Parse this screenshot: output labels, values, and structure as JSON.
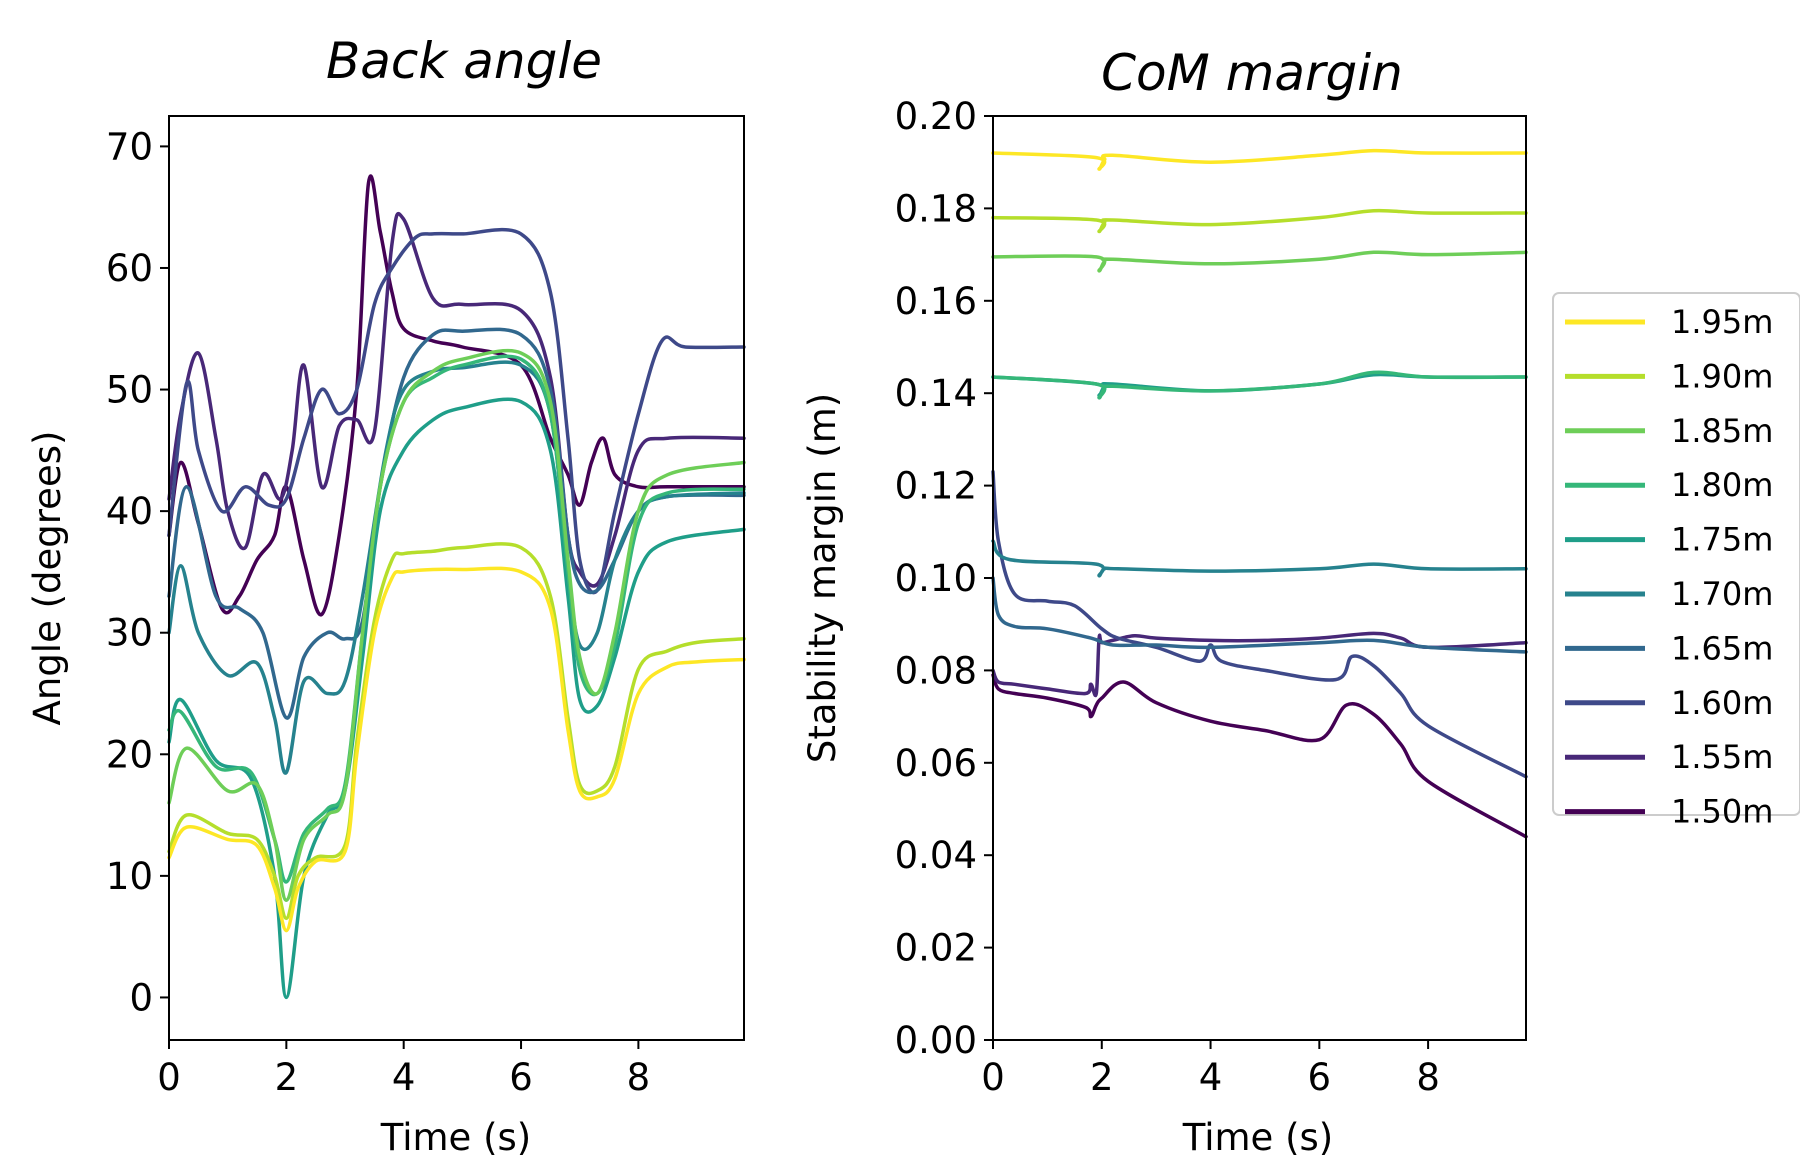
{
  "colors": {
    "1.95m": "#fde725",
    "1.90m": "#b5de2b",
    "1.85m": "#6ece58",
    "1.80m": "#35b779",
    "1.75m": "#1f9e89",
    "1.70m": "#26828e",
    "1.65m": "#31688e",
    "1.60m": "#3e4989",
    "1.55m": "#482878",
    "1.50m": "#440154"
  },
  "legend": {
    "placement": "right",
    "entries": [
      "1.95m",
      "1.90m",
      "1.85m",
      "1.80m",
      "1.75m",
      "1.70m",
      "1.65m",
      "1.60m",
      "1.55m",
      "1.50m"
    ]
  },
  "chart_data": [
    {
      "type": "line",
      "title": "Back angle",
      "xlabel": "Time (s)",
      "ylabel": "Angle (degrees)",
      "xlim": [
        0,
        9.8
      ],
      "ylim": [
        -3.5,
        72.5
      ],
      "xticks": [
        "0",
        "2",
        "4",
        "6",
        "8"
      ],
      "xtick_values": [
        0,
        2,
        4,
        6,
        8
      ],
      "yticks": [
        "0",
        "10",
        "20",
        "30",
        "40",
        "50",
        "60",
        "70"
      ],
      "ytick_values": [
        0,
        10,
        20,
        30,
        40,
        50,
        60,
        70
      ],
      "grid": false,
      "series": [
        {
          "name": "1.95m",
          "x": [
            0,
            0.3,
            1.0,
            1.5,
            1.8,
            2.0,
            2.2,
            2.5,
            3.0,
            3.2,
            3.5,
            3.8,
            4.0,
            4.5,
            5.0,
            6.0,
            6.5,
            6.8,
            7.0,
            7.3,
            7.6,
            8.0,
            8.5,
            9.0,
            9.8
          ],
          "values": [
            11.5,
            14.0,
            13.0,
            12.5,
            9.0,
            5.5,
            9.0,
            11.2,
            12.0,
            20.0,
            30.0,
            34.5,
            35.0,
            35.2,
            35.2,
            35.0,
            32.0,
            22.0,
            17.0,
            16.5,
            18.0,
            25.0,
            27.2,
            27.6,
            27.8
          ]
        },
        {
          "name": "1.90m",
          "x": [
            0,
            0.3,
            1.0,
            1.5,
            1.8,
            2.0,
            2.2,
            2.5,
            3.0,
            3.2,
            3.5,
            3.8,
            4.0,
            4.5,
            5.0,
            6.0,
            6.5,
            6.8,
            7.0,
            7.3,
            7.6,
            8.0,
            8.5,
            9.0,
            9.8
          ],
          "values": [
            12.0,
            15.0,
            13.5,
            13.0,
            10.0,
            6.5,
            10.0,
            11.5,
            12.5,
            21.0,
            31.0,
            36.0,
            36.5,
            36.7,
            37.0,
            37.0,
            33.0,
            23.0,
            17.5,
            17.0,
            19.0,
            27.0,
            28.5,
            29.2,
            29.5
          ]
        },
        {
          "name": "1.85m",
          "x": [
            0,
            0.3,
            1.0,
            1.5,
            1.8,
            2.0,
            2.3,
            2.7,
            3.0,
            3.3,
            3.6,
            4.0,
            4.5,
            5.0,
            6.0,
            6.5,
            6.8,
            7.0,
            7.3,
            7.6,
            8.0,
            8.5,
            9.8
          ],
          "values": [
            16.0,
            20.5,
            17.0,
            17.5,
            13.0,
            8.0,
            13.0,
            15.0,
            17.0,
            30.0,
            42.0,
            49.0,
            51.5,
            52.5,
            53.0,
            49.0,
            36.0,
            28.0,
            25.0,
            30.0,
            40.0,
            43.0,
            44.0
          ]
        },
        {
          "name": "1.80m",
          "x": [
            0,
            0.2,
            0.8,
            1.4,
            1.8,
            2.0,
            2.3,
            2.7,
            3.0,
            3.3,
            3.6,
            4.0,
            4.5,
            5.0,
            6.0,
            6.5,
            6.8,
            7.0,
            7.3,
            7.6,
            8.0,
            8.5,
            9.8
          ],
          "values": [
            22.0,
            23.5,
            19.0,
            18.5,
            13.0,
            9.5,
            13.5,
            15.5,
            17.5,
            30.0,
            42.0,
            49.0,
            51.0,
            52.0,
            52.5,
            48.0,
            35.0,
            27.0,
            25.0,
            29.0,
            39.0,
            41.5,
            41.8
          ]
        },
        {
          "name": "1.75m",
          "x": [
            0,
            0.2,
            0.8,
            1.4,
            1.8,
            2.0,
            2.3,
            2.7,
            3.0,
            3.3,
            3.6,
            4.0,
            4.5,
            5.0,
            6.0,
            6.5,
            6.8,
            7.0,
            7.3,
            7.6,
            8.0,
            8.5,
            9.8
          ],
          "values": [
            21.0,
            24.5,
            19.5,
            18.0,
            10.0,
            0.0,
            10.0,
            15.0,
            17.0,
            28.0,
            40.0,
            45.0,
            47.5,
            48.5,
            49.0,
            45.0,
            33.0,
            24.5,
            24.0,
            28.0,
            35.0,
            37.5,
            38.5
          ]
        },
        {
          "name": "1.70m",
          "x": [
            0,
            0.2,
            0.5,
            1.0,
            1.5,
            1.8,
            2.0,
            2.3,
            2.7,
            3.0,
            3.3,
            3.7,
            4.0,
            4.5,
            5.0,
            6.0,
            6.5,
            6.8,
            7.0,
            7.3,
            7.6,
            8.0,
            8.5,
            9.8
          ],
          "values": [
            30.0,
            35.5,
            30.0,
            26.5,
            27.5,
            23.0,
            18.5,
            26.0,
            25.0,
            26.0,
            33.0,
            45.0,
            50.0,
            51.5,
            51.8,
            52.0,
            48.0,
            35.0,
            29.0,
            30.0,
            36.0,
            40.0,
            41.2,
            41.5
          ]
        },
        {
          "name": "1.65m",
          "x": [
            0,
            0.3,
            0.8,
            1.2,
            1.6,
            2.0,
            2.3,
            2.7,
            3.0,
            3.3,
            3.6,
            4.0,
            4.5,
            5.0,
            6.0,
            6.5,
            6.8,
            7.0,
            7.3,
            7.6,
            8.0,
            8.5,
            9.8
          ],
          "values": [
            33.0,
            42.0,
            33.0,
            32.0,
            30.0,
            23.0,
            28.0,
            30.0,
            29.5,
            31.0,
            42.0,
            51.0,
            54.5,
            54.8,
            54.5,
            50.0,
            38.0,
            34.0,
            33.5,
            36.0,
            40.0,
            41.2,
            41.3
          ]
        },
        {
          "name": "1.60m",
          "x": [
            0,
            0.3,
            0.5,
            0.9,
            1.3,
            1.7,
            2.0,
            2.3,
            2.6,
            2.9,
            3.2,
            3.5,
            3.8,
            4.2,
            4.5,
            5.0,
            6.0,
            6.5,
            6.8,
            7.0,
            7.3,
            7.6,
            8.0,
            8.4,
            8.8,
            9.8
          ],
          "values": [
            38.0,
            50.5,
            45.0,
            40.0,
            42.0,
            40.5,
            41.0,
            46.0,
            50.0,
            48.0,
            50.0,
            57.0,
            60.0,
            62.5,
            62.8,
            62.8,
            62.8,
            58.0,
            46.0,
            36.0,
            33.5,
            40.0,
            48.0,
            54.0,
            53.5,
            53.5
          ]
        },
        {
          "name": "1.55m",
          "x": [
            0,
            0.2,
            0.5,
            0.8,
            1.0,
            1.3,
            1.6,
            1.9,
            2.1,
            2.3,
            2.6,
            2.9,
            3.2,
            3.5,
            3.8,
            4.0,
            4.5,
            5.0,
            6.0,
            6.5,
            6.8,
            7.0,
            7.3,
            7.6,
            8.0,
            8.5,
            9.8
          ],
          "values": [
            41.0,
            48.0,
            53.0,
            46.0,
            40.0,
            37.0,
            43.0,
            41.0,
            45.0,
            52.0,
            42.0,
            47.0,
            47.5,
            46.5,
            62.0,
            64.0,
            57.5,
            57.0,
            56.5,
            51.0,
            38.0,
            35.0,
            34.0,
            38.0,
            45.0,
            46.0,
            46.0
          ]
        },
        {
          "name": "1.50m",
          "x": [
            0,
            0.2,
            0.5,
            0.9,
            1.2,
            1.5,
            1.8,
            2.0,
            2.3,
            2.6,
            2.9,
            3.2,
            3.4,
            3.6,
            3.8,
            4.0,
            4.5,
            5.0,
            6.0,
            6.5,
            6.8,
            7.0,
            7.2,
            7.4,
            7.6,
            8.0,
            8.5,
            9.8
          ],
          "values": [
            38.0,
            44.0,
            39.0,
            32.0,
            33.0,
            36.0,
            38.0,
            42.0,
            36.0,
            31.5,
            38.0,
            50.0,
            67.0,
            63.0,
            58.0,
            55.0,
            54.0,
            53.5,
            52.0,
            46.0,
            43.0,
            40.5,
            44.0,
            46.0,
            43.0,
            42.0,
            42.0,
            42.0
          ]
        }
      ]
    },
    {
      "type": "line",
      "title": "CoM margin",
      "xlabel": "Time (s)",
      "ylabel": "Stability margin (m)",
      "xlim": [
        0,
        9.8
      ],
      "ylim": [
        0,
        0.2
      ],
      "xticks": [
        "0",
        "2",
        "4",
        "6",
        "8"
      ],
      "xtick_values": [
        0,
        2,
        4,
        6,
        8
      ],
      "yticks": [
        "0.00",
        "0.02",
        "0.04",
        "0.06",
        "0.08",
        "0.10",
        "0.12",
        "0.14",
        "0.16",
        "0.18",
        "0.20"
      ],
      "ytick_values": [
        0,
        0.02,
        0.04,
        0.06,
        0.08,
        0.1,
        0.12,
        0.14,
        0.16,
        0.18,
        0.2
      ],
      "grid": false,
      "series": [
        {
          "name": "1.95m",
          "x": [
            0,
            1.9,
            1.95,
            2.05,
            2.2,
            4.0,
            6.0,
            7.0,
            8.0,
            9.8
          ],
          "values": [
            0.192,
            0.191,
            0.1885,
            0.1905,
            0.1915,
            0.19,
            0.1915,
            0.1925,
            0.192,
            0.192
          ]
        },
        {
          "name": "1.90m",
          "x": [
            0,
            1.9,
            1.95,
            2.05,
            2.2,
            4.0,
            6.0,
            7.0,
            8.0,
            9.8
          ],
          "values": [
            0.178,
            0.1775,
            0.175,
            0.177,
            0.1775,
            0.1765,
            0.178,
            0.1795,
            0.179,
            0.179
          ]
        },
        {
          "name": "1.85m",
          "x": [
            0,
            1.9,
            1.95,
            2.05,
            2.2,
            4.0,
            6.0,
            7.0,
            8.0,
            9.8
          ],
          "values": [
            0.1695,
            0.1695,
            0.1665,
            0.1685,
            0.169,
            0.168,
            0.169,
            0.1705,
            0.17,
            0.1705
          ]
        },
        {
          "name": "1.80m",
          "x": [
            0,
            1.9,
            1.95,
            2.05,
            2.2,
            4.0,
            6.0,
            7.0,
            8.0,
            9.8
          ],
          "values": [
            0.1435,
            0.142,
            0.139,
            0.141,
            0.1415,
            0.1405,
            0.142,
            0.1445,
            0.1435,
            0.1435
          ]
        },
        {
          "name": "1.75m",
          "x": [
            0,
            1.9,
            1.95,
            2.05,
            2.2,
            4.0,
            6.0,
            7.0,
            8.0,
            9.8
          ],
          "values": [
            0.1435,
            0.142,
            0.1395,
            0.1415,
            0.142,
            0.1405,
            0.142,
            0.144,
            0.1435,
            0.1435
          ]
        },
        {
          "name": "1.70m",
          "x": [
            0,
            0.3,
            1.9,
            1.95,
            2.05,
            2.3,
            4.0,
            6.0,
            7.0,
            8.0,
            9.8
          ],
          "values": [
            0.108,
            0.104,
            0.103,
            0.1005,
            0.102,
            0.102,
            0.1015,
            0.102,
            0.103,
            0.102,
            0.102
          ]
        },
        {
          "name": "1.65m",
          "x": [
            0,
            0.1,
            0.4,
            1.0,
            1.8,
            2.2,
            3.0,
            4.0,
            6.0,
            7.0,
            8.0,
            9.8
          ],
          "values": [
            0.1,
            0.092,
            0.0895,
            0.089,
            0.087,
            0.0855,
            0.0855,
            0.085,
            0.086,
            0.0865,
            0.085,
            0.084
          ]
        },
        {
          "name": "1.60m",
          "x": [
            0,
            0.1,
            0.4,
            1.0,
            1.5,
            2.0,
            2.3,
            3.0,
            3.8,
            4.0,
            4.2,
            5.0,
            6.3,
            6.6,
            7.0,
            7.5,
            8.0,
            9.8
          ],
          "values": [
            0.123,
            0.108,
            0.0965,
            0.095,
            0.094,
            0.089,
            0.087,
            0.085,
            0.082,
            0.0855,
            0.082,
            0.08,
            0.078,
            0.083,
            0.081,
            0.075,
            0.068,
            0.057
          ]
        },
        {
          "name": "1.55m",
          "x": [
            0,
            0.1,
            0.4,
            1.0,
            1.7,
            1.8,
            1.9,
            1.95,
            2.0,
            2.2,
            2.6,
            3.0,
            4.0,
            5.0,
            6.0,
            7.0,
            7.5,
            8.0,
            9.8
          ],
          "values": [
            0.08,
            0.0775,
            0.077,
            0.076,
            0.075,
            0.077,
            0.075,
            0.087,
            0.086,
            0.0865,
            0.0875,
            0.087,
            0.0865,
            0.0865,
            0.087,
            0.088,
            0.087,
            0.085,
            0.086
          ]
        },
        {
          "name": "1.50m",
          "x": [
            0,
            0.1,
            0.4,
            1.0,
            1.7,
            1.8,
            1.9,
            2.0,
            2.4,
            3.0,
            4.0,
            5.0,
            6.0,
            6.5,
            7.0,
            7.5,
            8.0,
            9.8
          ],
          "values": [
            0.079,
            0.076,
            0.075,
            0.074,
            0.072,
            0.07,
            0.0725,
            0.074,
            0.0775,
            0.073,
            0.069,
            0.067,
            0.065,
            0.0725,
            0.0705,
            0.064,
            0.056,
            0.044
          ]
        }
      ]
    }
  ]
}
